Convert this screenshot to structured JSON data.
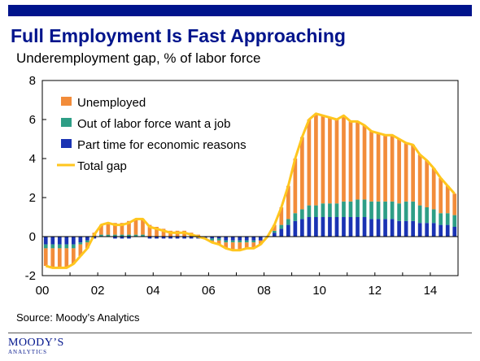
{
  "header": {
    "title": "Full Employment Is Fast Approaching",
    "subtitle": "Underemployment gap, % of labor force"
  },
  "footer": {
    "source": "Source: Moody’s Analytics",
    "logo_line1": "MOODY’S",
    "logo_line2": "ANALYTICS"
  },
  "colors": {
    "brand": "#00148c",
    "unemployed": "#f28c3a",
    "out_of_labor_force": "#2e9e86",
    "part_time": "#1a33b3",
    "total_gap": "#ffc61e"
  },
  "chart_data": {
    "type": "bar",
    "stacked": true,
    "subtitle": "Underemployment gap, % of labor force",
    "x_ticks": [
      "00",
      "02",
      "04",
      "06",
      "08",
      "10",
      "12",
      "14"
    ],
    "ylim": [
      -2,
      8
    ],
    "yticks": [
      "-2",
      "0",
      "2",
      "4",
      "6",
      "8"
    ],
    "grid": false,
    "legend_position": "top-left",
    "x": [
      2000.0,
      2000.25,
      2000.5,
      2000.75,
      2001.0,
      2001.25,
      2001.5,
      2001.75,
      2002.0,
      2002.25,
      2002.5,
      2002.75,
      2003.0,
      2003.25,
      2003.5,
      2003.75,
      2004.0,
      2004.25,
      2004.5,
      2004.75,
      2005.0,
      2005.25,
      2005.5,
      2005.75,
      2006.0,
      2006.25,
      2006.5,
      2006.75,
      2007.0,
      2007.25,
      2007.5,
      2007.75,
      2008.0,
      2008.25,
      2008.5,
      2008.75,
      2009.0,
      2009.25,
      2009.5,
      2009.75,
      2010.0,
      2010.25,
      2010.5,
      2010.75,
      2011.0,
      2011.25,
      2011.5,
      2011.75,
      2012.0,
      2012.25,
      2012.5,
      2012.75,
      2013.0,
      2013.25,
      2013.5,
      2013.75,
      2014.0,
      2014.25,
      2014.5,
      2014.75
    ],
    "series": [
      {
        "name": "Unemployed",
        "values": [
          -0.9,
          -1.0,
          -1.0,
          -1.0,
          -0.8,
          -0.6,
          -0.3,
          0.2,
          0.5,
          0.6,
          0.6,
          0.6,
          0.7,
          0.8,
          0.8,
          0.6,
          0.5,
          0.4,
          0.3,
          0.3,
          0.3,
          0.2,
          0.1,
          0.0,
          -0.1,
          -0.2,
          -0.3,
          -0.4,
          -0.4,
          -0.3,
          -0.3,
          -0.2,
          0.0,
          0.3,
          0.9,
          1.7,
          2.8,
          3.7,
          4.4,
          4.7,
          4.5,
          4.4,
          4.3,
          4.4,
          4.1,
          4.0,
          3.8,
          3.6,
          3.5,
          3.4,
          3.4,
          3.3,
          3.0,
          2.9,
          2.6,
          2.4,
          2.1,
          1.8,
          1.4,
          1.1
        ]
      },
      {
        "name": "Out of labor force want a job",
        "values": [
          -0.2,
          -0.2,
          -0.2,
          -0.2,
          -0.2,
          -0.1,
          -0.1,
          0.0,
          0.1,
          0.1,
          0.1,
          0.1,
          0.1,
          0.1,
          0.1,
          0.0,
          0.0,
          0.0,
          0.0,
          0.0,
          0.0,
          0.0,
          0.0,
          0.0,
          -0.1,
          -0.1,
          -0.1,
          -0.1,
          -0.1,
          -0.1,
          -0.1,
          0.0,
          0.0,
          0.1,
          0.2,
          0.3,
          0.4,
          0.5,
          0.6,
          0.6,
          0.7,
          0.7,
          0.7,
          0.8,
          0.8,
          0.9,
          0.9,
          0.9,
          0.9,
          0.9,
          0.9,
          0.9,
          1.0,
          1.0,
          0.9,
          0.8,
          0.7,
          0.6,
          0.6,
          0.6
        ]
      },
      {
        "name": "Part time for economic reasons",
        "values": [
          -0.4,
          -0.4,
          -0.4,
          -0.4,
          -0.4,
          -0.3,
          -0.2,
          -0.1,
          0.0,
          0.0,
          -0.1,
          -0.1,
          -0.1,
          0.0,
          0.0,
          -0.1,
          -0.1,
          -0.1,
          -0.1,
          -0.1,
          -0.1,
          -0.1,
          -0.1,
          -0.1,
          -0.1,
          -0.1,
          -0.2,
          -0.2,
          -0.2,
          -0.2,
          -0.2,
          -0.2,
          0.0,
          0.2,
          0.4,
          0.6,
          0.8,
          0.9,
          1.0,
          1.0,
          1.0,
          1.0,
          1.0,
          1.0,
          1.0,
          1.0,
          1.0,
          0.9,
          0.9,
          0.9,
          0.9,
          0.8,
          0.8,
          0.8,
          0.7,
          0.7,
          0.7,
          0.6,
          0.6,
          0.5
        ]
      }
    ],
    "total_gap": {
      "name": "Total gap",
      "values": [
        -1.5,
        -1.6,
        -1.6,
        -1.6,
        -1.4,
        -1.0,
        -0.6,
        0.1,
        0.6,
        0.7,
        0.6,
        0.6,
        0.7,
        0.9,
        0.9,
        0.5,
        0.4,
        0.3,
        0.2,
        0.2,
        0.2,
        0.1,
        0.0,
        -0.1,
        -0.3,
        -0.4,
        -0.6,
        -0.7,
        -0.7,
        -0.6,
        -0.6,
        -0.4,
        0.0,
        0.6,
        1.5,
        2.6,
        4.0,
        5.1,
        6.0,
        6.3,
        6.2,
        6.1,
        6.0,
        6.2,
        5.9,
        5.9,
        5.7,
        5.4,
        5.3,
        5.2,
        5.2,
        5.0,
        4.8,
        4.7,
        4.2,
        3.9,
        3.5,
        3.0,
        2.6,
        2.2
      ]
    }
  }
}
